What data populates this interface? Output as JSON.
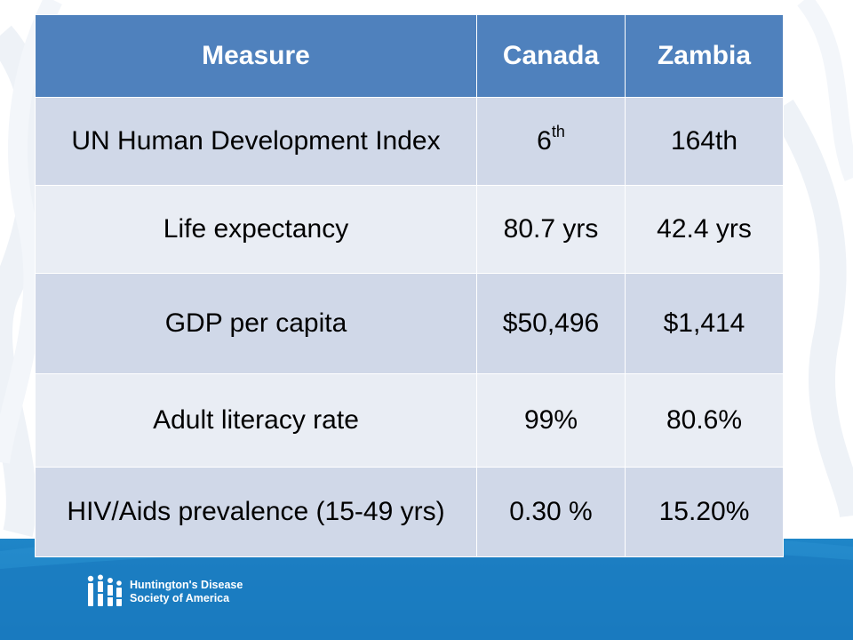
{
  "table": {
    "headers": [
      "Measure",
      "Canada",
      "Zambia"
    ],
    "rows": [
      {
        "measure": "UN Human Development Index",
        "canada_base": "6",
        "canada_sup": "th",
        "zambia": "164th"
      },
      {
        "measure": "Life expectancy",
        "canada": "80.7 yrs",
        "zambia": "42.4 yrs"
      },
      {
        "measure": "GDP per capita",
        "canada": "$50,496",
        "zambia": "$1,414"
      },
      {
        "measure": "Adult literacy rate",
        "canada": "99%",
        "zambia": "80.6%"
      },
      {
        "measure": "HIV/Aids prevalence (15-49 yrs)",
        "canada": "0.30 %",
        "zambia": "15.20%"
      }
    ]
  },
  "footer": {
    "logo_line1": "Huntington's Disease",
    "logo_line2": "Society of America",
    "logo_icon": "hdsa-people-icon"
  },
  "colors": {
    "header_bg": "#4f81bd",
    "row_odd": "#d0d8e8",
    "row_even": "#e9edf4",
    "footer_blue": "#1a7fc4"
  }
}
